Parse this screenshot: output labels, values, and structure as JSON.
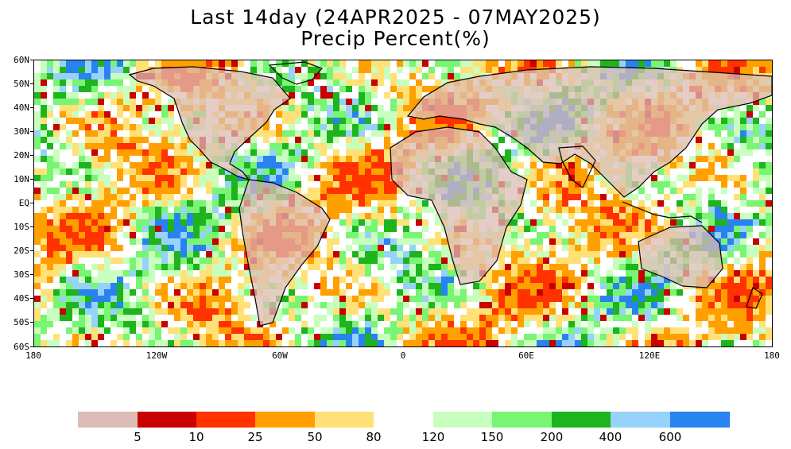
{
  "title": {
    "line1": "Last 14day (24APR2025 - 07MAY2025)",
    "line2": "Precip Percent(%)"
  },
  "axes": {
    "lat_labels": [
      "60N",
      "50N",
      "40N",
      "30N",
      "20N",
      "10N",
      "EQ",
      "10S",
      "20S",
      "30S",
      "40S",
      "50S",
      "60S"
    ],
    "lon_labels": [
      "180",
      "120W",
      "60W",
      "0",
      "60E",
      "120E",
      "180"
    ],
    "lat_range": [
      -60,
      60
    ],
    "lon_range": [
      -180,
      180
    ]
  },
  "legend": {
    "bins": [
      {
        "color": "#dcbcb4"
      },
      {
        "color": "#c80000"
      },
      {
        "color": "#ff3200"
      },
      {
        "color": "#ffa000"
      },
      {
        "color": "#ffe178"
      },
      {
        "color": "#ffffff"
      },
      {
        "color": "#c8ffbe"
      },
      {
        "color": "#78f573"
      },
      {
        "color": "#1eb41e"
      },
      {
        "color": "#96d2fa"
      },
      {
        "color": "#2882f0"
      }
    ],
    "labels": [
      "5",
      "10",
      "25",
      "50",
      "80",
      "120",
      "150",
      "200",
      "400",
      "600"
    ]
  },
  "colors": {
    "land_outline": "#000000",
    "ocean_background": "#ffffff"
  }
}
